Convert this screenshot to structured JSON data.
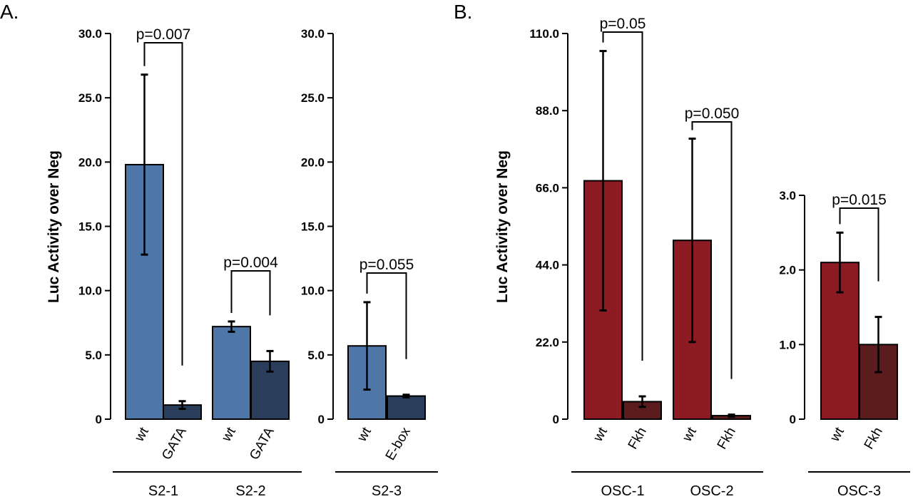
{
  "panel_letters": [
    "A.",
    "B."
  ],
  "colors": {
    "wt_blue": "#4e76a6",
    "mut_blue": "#2a3e5c",
    "wt_red": "#8c1b24",
    "mut_red": "#5a1c1c",
    "stroke": "#000000"
  },
  "chart_data": [
    {
      "type": "bar",
      "panel": "A.",
      "ylabel": "Luc Activity over Neg",
      "ylim": [
        0,
        30
      ],
      "yticks": [
        "0",
        "5.0",
        "10.0",
        "15.0",
        "20.0",
        "25.0",
        "30.0"
      ],
      "groups": [
        {
          "name": "S2-1",
          "categories": [
            "wt",
            "GATA"
          ],
          "values": [
            19.8,
            1.1
          ],
          "errors": [
            7.0,
            0.3
          ],
          "pvalue": "p=0.007"
        },
        {
          "name": "S2-2",
          "categories": [
            "wt",
            "GATA"
          ],
          "values": [
            7.2,
            4.5
          ],
          "errors": [
            0.4,
            0.8
          ],
          "pvalue": "p=0.004"
        }
      ]
    },
    {
      "type": "bar",
      "ylim": [
        0,
        30
      ],
      "yticks": [
        "0",
        "5.0",
        "10.0",
        "15.0",
        "20.0",
        "25.0",
        "30.0"
      ],
      "groups": [
        {
          "name": "S2-3",
          "categories": [
            "wt",
            "E-box"
          ],
          "values": [
            5.7,
            1.8
          ],
          "errors": [
            3.4,
            0.1
          ],
          "pvalue": "p=0.055"
        }
      ]
    },
    {
      "type": "bar",
      "panel": "B.",
      "ylabel": "Luc Activity over Neg",
      "ylim": [
        0,
        110
      ],
      "yticks": [
        "0",
        "22.0",
        "44.0",
        "66.0",
        "88.0",
        "110.0"
      ],
      "groups": [
        {
          "name": "OSC-1",
          "categories": [
            "wt",
            "Fkh"
          ],
          "values": [
            68,
            5
          ],
          "errors": [
            37,
            1.5
          ],
          "pvalue": "p=0.05"
        },
        {
          "name": "OSC-2",
          "categories": [
            "wt",
            "Fkh"
          ],
          "values": [
            51,
            1
          ],
          "errors": [
            29,
            0.3
          ],
          "pvalue": "p=0.050"
        }
      ]
    },
    {
      "type": "bar",
      "ylim": [
        0,
        3
      ],
      "yticks": [
        "0",
        "1.0",
        "2.0",
        "3.0"
      ],
      "groups": [
        {
          "name": "OSC-3",
          "categories": [
            "wt",
            "Fkh"
          ],
          "values": [
            2.1,
            1.0
          ],
          "errors": [
            0.4,
            0.37
          ],
          "pvalue": "p=0.015"
        }
      ]
    }
  ]
}
